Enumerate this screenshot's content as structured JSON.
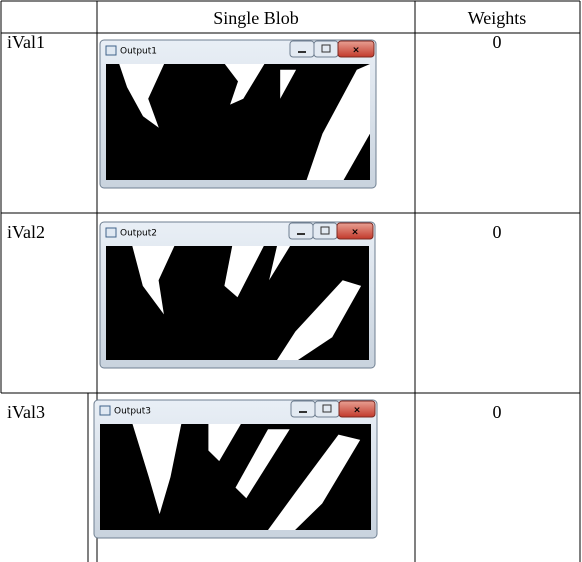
{
  "table": {
    "header": [
      "Single Blob",
      "Weights"
    ],
    "rows": [
      {
        "label": "iVal1",
        "window_title": "Output1",
        "weight": 0
      },
      {
        "label": "iVal2",
        "window_title": "Output2",
        "weight": 0
      },
      {
        "label": "iVal3",
        "window_title": "Output3",
        "weight": 0
      }
    ]
  }
}
